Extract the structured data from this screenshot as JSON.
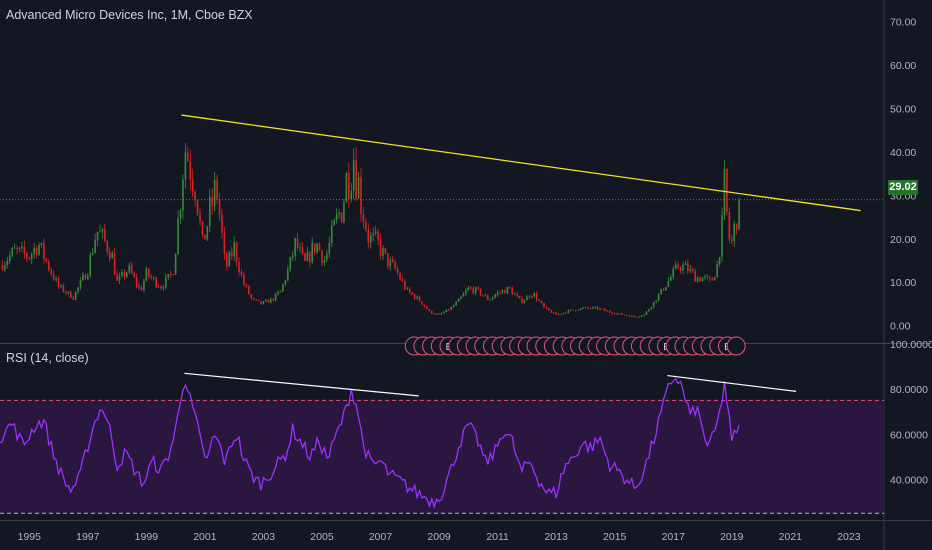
{
  "header": {
    "title": "Advanced Micro Devices Inc, 1M, Cboe BZX"
  },
  "rsi_panel": {
    "title": "RSI (14, close)"
  },
  "last_price": "29.02",
  "colors": {
    "background": "#131722",
    "up_candle": "#3b8a3e",
    "down_candle": "#e02121",
    "trendline": "#f3e424",
    "rsi_line": "#9b30ff",
    "rsi_band_fill": "#2a1740",
    "rsi_band_line": "#e8557a",
    "rsi_divergence_line": "#ffffff",
    "earnings_marker": "#e8557a",
    "price_badge": "#22742a",
    "last_price_line": "#3b8a3e"
  },
  "chart_data": [
    {
      "type": "candlestick",
      "title": "Advanced Micro Devices Inc, 1M, Cboe BZX",
      "x_range": [
        1994.0,
        2024.2
      ],
      "ylim": [
        -4,
        75
      ],
      "y_ticks": [
        "0.00",
        "10.00",
        "20.00",
        "30.00",
        "40.00",
        "50.00",
        "60.00",
        "70.00"
      ],
      "y_tick_values": [
        0,
        10,
        20,
        30,
        40,
        50,
        60,
        70
      ],
      "x_tick_labels": [
        "1995",
        "1997",
        "1999",
        "2001",
        "2003",
        "2005",
        "2007",
        "2009",
        "2011",
        "2013",
        "2015",
        "2017",
        "2019",
        "2021",
        "2023"
      ],
      "x_tick_values": [
        1995,
        1997,
        1999,
        2001,
        2003,
        2005,
        2007,
        2009,
        2011,
        2013,
        2015,
        2017,
        2019,
        2021,
        2023
      ],
      "price_path": [
        [
          1994.0,
          14
        ],
        [
          1994.5,
          17
        ],
        [
          1995.0,
          16
        ],
        [
          1995.3,
          19
        ],
        [
          1995.7,
          13
        ],
        [
          1996.0,
          9
        ],
        [
          1996.5,
          6.5
        ],
        [
          1997.0,
          13
        ],
        [
          1997.3,
          22
        ],
        [
          1997.8,
          17
        ],
        [
          1998.0,
          10
        ],
        [
          1998.4,
          13
        ],
        [
          1998.8,
          8
        ],
        [
          1999.0,
          12
        ],
        [
          1999.5,
          9
        ],
        [
          1999.9,
          12
        ],
        [
          2000.1,
          25
        ],
        [
          2000.3,
          42
        ],
        [
          2000.5,
          38
        ],
        [
          2000.7,
          33
        ],
        [
          2000.9,
          18
        ],
        [
          2001.2,
          27
        ],
        [
          2001.4,
          32
        ],
        [
          2001.7,
          13
        ],
        [
          2002.0,
          18
        ],
        [
          2002.3,
          10
        ],
        [
          2002.6,
          6
        ],
        [
          2002.9,
          5
        ],
        [
          2003.3,
          6
        ],
        [
          2003.6,
          8
        ],
        [
          2003.9,
          14
        ],
        [
          2004.1,
          19
        ],
        [
          2004.4,
          14
        ],
        [
          2004.8,
          19
        ],
        [
          2005.1,
          15
        ],
        [
          2005.4,
          22
        ],
        [
          2005.7,
          28
        ],
        [
          2005.95,
          38
        ],
        [
          2006.1,
          40
        ],
        [
          2006.3,
          30
        ],
        [
          2006.6,
          20
        ],
        [
          2006.9,
          19
        ],
        [
          2007.2,
          15
        ],
        [
          2007.5,
          13
        ],
        [
          2007.9,
          8
        ],
        [
          2008.3,
          6
        ],
        [
          2008.7,
          3
        ],
        [
          2009.0,
          2.5
        ],
        [
          2009.4,
          4
        ],
        [
          2009.7,
          6
        ],
        [
          2010.0,
          8.5
        ],
        [
          2010.3,
          8
        ],
        [
          2010.7,
          6
        ],
        [
          2011.0,
          7.5
        ],
        [
          2011.4,
          8.5
        ],
        [
          2011.8,
          5.5
        ],
        [
          2012.2,
          7.5
        ],
        [
          2012.6,
          4
        ],
        [
          2013.0,
          2.5
        ],
        [
          2013.5,
          3.5
        ],
        [
          2013.9,
          4
        ],
        [
          2014.4,
          4
        ],
        [
          2014.9,
          3
        ],
        [
          2015.3,
          2.5
        ],
        [
          2015.7,
          2
        ],
        [
          2016.0,
          2.5
        ],
        [
          2016.3,
          5
        ],
        [
          2016.6,
          8
        ],
        [
          2016.9,
          11
        ],
        [
          2017.2,
          14
        ],
        [
          2017.5,
          13
        ],
        [
          2017.8,
          11
        ],
        [
          2018.0,
          11
        ],
        [
          2018.3,
          10
        ],
        [
          2018.5,
          14
        ],
        [
          2018.7,
          24
        ],
        [
          2018.75,
          31
        ],
        [
          2018.85,
          24
        ],
        [
          2018.95,
          18
        ],
        [
          2019.05,
          20
        ],
        [
          2019.15,
          26
        ],
        [
          2019.3,
          29.02
        ]
      ],
      "trendline": {
        "from": [
          2000.2,
          48.5
        ],
        "to": [
          2023.4,
          26.5
        ]
      },
      "last_price": 29.02,
      "earnings_markers": {
        "start_year": 2008.15,
        "end_year": 2019.15,
        "count": 38,
        "labeled_indices": [
          4,
          29,
          36
        ],
        "label": "E",
        "y_value": -4.7
      }
    },
    {
      "type": "line",
      "title": "RSI (14, close)",
      "ylim": [
        22,
        100
      ],
      "y_ticks": [
        "40.0000",
        "60.0000",
        "80.0000",
        "100.0000"
      ],
      "y_tick_values": [
        40,
        60,
        80,
        100
      ],
      "upper_band": 75,
      "lower_band": 25,
      "rsi_path": [
        [
          1994.0,
          58
        ],
        [
          1994.4,
          65
        ],
        [
          1994.8,
          55
        ],
        [
          1995.2,
          64
        ],
        [
          1995.5,
          66
        ],
        [
          1995.8,
          52
        ],
        [
          1996.1,
          42
        ],
        [
          1996.4,
          35
        ],
        [
          1996.7,
          40
        ],
        [
          1997.0,
          55
        ],
        [
          1997.3,
          68
        ],
        [
          1997.5,
          72
        ],
        [
          1997.8,
          60
        ],
        [
          1998.0,
          46
        ],
        [
          1998.3,
          52
        ],
        [
          1998.6,
          44
        ],
        [
          1998.9,
          38
        ],
        [
          1999.2,
          48
        ],
        [
          1999.5,
          44
        ],
        [
          1999.8,
          52
        ],
        [
          2000.0,
          62
        ],
        [
          2000.2,
          78
        ],
        [
          2000.3,
          86
        ],
        [
          2000.5,
          75
        ],
        [
          2000.7,
          66
        ],
        [
          2000.9,
          54
        ],
        [
          2001.1,
          48
        ],
        [
          2001.3,
          60
        ],
        [
          2001.5,
          55
        ],
        [
          2001.7,
          47
        ],
        [
          2001.9,
          56
        ],
        [
          2002.1,
          60
        ],
        [
          2002.3,
          50
        ],
        [
          2002.6,
          42
        ],
        [
          2002.9,
          38
        ],
        [
          2003.2,
          42
        ],
        [
          2003.5,
          47
        ],
        [
          2003.8,
          52
        ],
        [
          2004.0,
          62
        ],
        [
          2004.3,
          56
        ],
        [
          2004.6,
          50
        ],
        [
          2004.9,
          57
        ],
        [
          2005.2,
          49
        ],
        [
          2005.5,
          60
        ],
        [
          2005.8,
          70
        ],
        [
          2006.0,
          80
        ],
        [
          2006.2,
          72
        ],
        [
          2006.4,
          56
        ],
        [
          2006.7,
          46
        ],
        [
          2007.0,
          48
        ],
        [
          2007.3,
          42
        ],
        [
          2007.6,
          40
        ],
        [
          2008.0,
          36
        ],
        [
          2008.4,
          33
        ],
        [
          2008.8,
          30
        ],
        [
          2009.1,
          34
        ],
        [
          2009.4,
          44
        ],
        [
          2009.7,
          56
        ],
        [
          2010.0,
          64
        ],
        [
          2010.3,
          58
        ],
        [
          2010.6,
          47
        ],
        [
          2010.9,
          52
        ],
        [
          2011.2,
          62
        ],
        [
          2011.5,
          57
        ],
        [
          2011.8,
          43
        ],
        [
          2012.1,
          48
        ],
        [
          2012.4,
          40
        ],
        [
          2012.7,
          34
        ],
        [
          2013.0,
          34
        ],
        [
          2013.3,
          46
        ],
        [
          2013.6,
          50
        ],
        [
          2013.9,
          56
        ],
        [
          2014.2,
          54
        ],
        [
          2014.5,
          58
        ],
        [
          2014.8,
          47
        ],
        [
          2015.1,
          44
        ],
        [
          2015.4,
          40
        ],
        [
          2015.7,
          36
        ],
        [
          2016.0,
          44
        ],
        [
          2016.3,
          56
        ],
        [
          2016.6,
          70
        ],
        [
          2016.85,
          81
        ],
        [
          2017.0,
          85
        ],
        [
          2017.2,
          84
        ],
        [
          2017.4,
          76
        ],
        [
          2017.6,
          68
        ],
        [
          2017.8,
          72
        ],
        [
          2018.0,
          62
        ],
        [
          2018.2,
          54
        ],
        [
          2018.4,
          60
        ],
        [
          2018.6,
          70
        ],
        [
          2018.75,
          83
        ],
        [
          2018.9,
          68
        ],
        [
          2019.0,
          56
        ],
        [
          2019.15,
          62
        ],
        [
          2019.3,
          65
        ]
      ],
      "divergence_lines": [
        {
          "from": [
            2000.3,
            87
          ],
          "to": [
            2008.3,
            77
          ]
        },
        {
          "from": [
            2016.8,
            86
          ],
          "to": [
            2021.2,
            79
          ]
        }
      ]
    }
  ]
}
